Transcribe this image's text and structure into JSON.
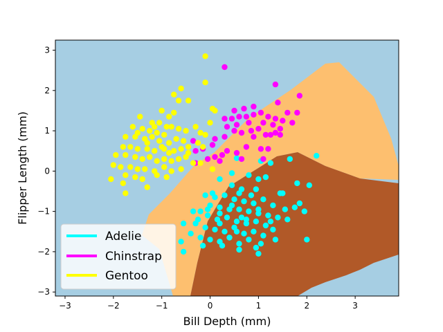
{
  "chart_data": {
    "type": "scatter",
    "title": "",
    "xlabel": "Bill Depth (mm)",
    "ylabel": "Flipper Length (mm)",
    "xlim": [
      -3.2,
      3.9
    ],
    "ylim": [
      -3.1,
      3.25
    ],
    "xticks": [
      -3,
      -2,
      -1,
      0,
      1,
      2,
      3
    ],
    "yticks": [
      -3,
      -2,
      -1,
      0,
      1,
      2,
      3
    ],
    "grid": false,
    "legend_position": "lower-left",
    "decision_regions": [
      {
        "name": "Adelie",
        "color": "#b15928"
      },
      {
        "name": "Chinstrap",
        "color": "#fdbf6f"
      },
      {
        "name": "Gentoo",
        "color": "#a6cee3"
      }
    ],
    "series": [
      {
        "name": "Adelie",
        "color": "#00ffff",
        "points": [
          [
            2.2,
            0.38
          ],
          [
            1.65,
            0.3
          ],
          [
            0.55,
            0.32
          ],
          [
            1.05,
            0.25
          ],
          [
            1.25,
            0.2
          ],
          [
            0.2,
            -0.2
          ],
          [
            0.45,
            -0.05
          ],
          [
            0.8,
            -0.1
          ],
          [
            1.0,
            -0.2
          ],
          [
            1.15,
            -0.15
          ],
          [
            1.8,
            -0.3
          ],
          [
            2.05,
            -0.35
          ],
          [
            0.95,
            -0.45
          ],
          [
            1.45,
            -0.55
          ],
          [
            0.6,
            -0.55
          ],
          [
            -0.1,
            -0.6
          ],
          [
            0.1,
            -0.65
          ],
          [
            0.3,
            -0.6
          ],
          [
            0.5,
            -0.7
          ],
          [
            0.7,
            -0.75
          ],
          [
            0.9,
            -0.8
          ],
          [
            1.1,
            -0.7
          ],
          [
            1.3,
            -0.85
          ],
          [
            1.5,
            -0.55
          ],
          [
            1.85,
            -0.8
          ],
          [
            0.0,
            -0.85
          ],
          [
            0.2,
            -0.9
          ],
          [
            0.4,
            -0.95
          ],
          [
            0.6,
            -0.95
          ],
          [
            0.8,
            -1.0
          ],
          [
            1.0,
            -1.05
          ],
          [
            1.2,
            -1.1
          ],
          [
            -0.2,
            -1.0
          ],
          [
            -0.05,
            -1.1
          ],
          [
            0.15,
            -1.2
          ],
          [
            0.35,
            -1.15
          ],
          [
            0.55,
            -1.25
          ],
          [
            0.75,
            -1.3
          ],
          [
            0.95,
            -1.25
          ],
          [
            1.15,
            -1.35
          ],
          [
            1.4,
            -1.15
          ],
          [
            1.6,
            -1.2
          ],
          [
            1.95,
            -1.0
          ],
          [
            1.75,
            -0.9
          ],
          [
            -0.3,
            -1.3
          ],
          [
            -0.1,
            -1.4
          ],
          [
            0.1,
            -1.45
          ],
          [
            0.3,
            -1.5
          ],
          [
            0.5,
            -1.4
          ],
          [
            0.7,
            -1.55
          ],
          [
            0.9,
            -1.5
          ],
          [
            1.1,
            -1.6
          ],
          [
            1.3,
            -1.45
          ],
          [
            -0.4,
            -1.55
          ],
          [
            -0.2,
            -1.65
          ],
          [
            0.0,
            -1.7
          ],
          [
            0.2,
            -1.75
          ],
          [
            0.4,
            -1.65
          ],
          [
            0.6,
            -1.8
          ],
          [
            0.8,
            -1.7
          ],
          [
            1.05,
            -1.8
          ],
          [
            -0.6,
            -1.75
          ],
          [
            -0.15,
            -1.85
          ],
          [
            0.25,
            -1.85
          ],
          [
            0.6,
            -1.95
          ],
          [
            0.95,
            -1.9
          ],
          [
            1.35,
            -1.7
          ],
          [
            2.0,
            -1.7
          ],
          [
            -0.55,
            -1.3
          ],
          [
            -0.35,
            -1.0
          ],
          [
            0.45,
            -0.35
          ],
          [
            0.65,
            -0.45
          ],
          [
            0.05,
            -0.55
          ],
          [
            -0.05,
            -0.95
          ],
          [
            0.85,
            -0.6
          ],
          [
            1.55,
            -0.95
          ],
          [
            1.0,
            -0.95
          ],
          [
            0.65,
            -1.15
          ],
          [
            0.2,
            -1.05
          ],
          [
            -0.25,
            -1.2
          ],
          [
            -0.55,
            -2.0
          ],
          [
            1.0,
            -2.05
          ],
          [
            0.2,
            -1.3
          ],
          [
            0.45,
            -0.85
          ],
          [
            1.25,
            -1.25
          ],
          [
            0.75,
            -1.2
          ],
          [
            0.55,
            -1.5
          ]
        ]
      },
      {
        "name": "Chinstrap",
        "color": "#ff00ff",
        "points": [
          [
            0.3,
            2.58
          ],
          [
            1.35,
            2.15
          ],
          [
            1.85,
            1.87
          ],
          [
            1.4,
            1.7
          ],
          [
            1.6,
            1.45
          ],
          [
            1.8,
            1.45
          ],
          [
            0.9,
            1.6
          ],
          [
            0.7,
            1.55
          ],
          [
            0.5,
            1.5
          ],
          [
            0.3,
            1.3
          ],
          [
            0.45,
            1.3
          ],
          [
            0.6,
            1.35
          ],
          [
            0.75,
            1.35
          ],
          [
            0.9,
            1.4
          ],
          [
            1.05,
            1.45
          ],
          [
            1.2,
            1.35
          ],
          [
            1.35,
            1.3
          ],
          [
            1.5,
            1.25
          ],
          [
            1.7,
            1.2
          ],
          [
            0.35,
            1.1
          ],
          [
            0.55,
            1.15
          ],
          [
            0.8,
            1.2
          ],
          [
            1.0,
            1.05
          ],
          [
            1.1,
            1.2
          ],
          [
            1.3,
            1.15
          ],
          [
            1.45,
            1.05
          ],
          [
            0.5,
            1.0
          ],
          [
            0.65,
            0.95
          ],
          [
            0.85,
            1.0
          ],
          [
            1.15,
            0.9
          ],
          [
            1.35,
            0.95
          ],
          [
            0.3,
            0.85
          ],
          [
            0.1,
            0.8
          ],
          [
            0.9,
            0.85
          ],
          [
            1.25,
            0.9
          ],
          [
            1.45,
            0.9
          ],
          [
            -0.35,
            0.75
          ],
          [
            0.05,
            0.65
          ],
          [
            -0.15,
            0.55
          ],
          [
            -0.3,
            0.5
          ],
          [
            0.35,
            0.5
          ],
          [
            0.55,
            0.45
          ],
          [
            0.25,
            0.4
          ],
          [
            0.1,
            0.35
          ],
          [
            -0.05,
            0.3
          ],
          [
            0.2,
            0.25
          ],
          [
            -0.3,
            0.2
          ],
          [
            0.65,
            0.3
          ],
          [
            1.1,
            0.3
          ],
          [
            0.75,
            0.6
          ],
          [
            1.05,
            0.55
          ],
          [
            1.2,
            0.55
          ]
        ]
      },
      {
        "name": "Gentoo",
        "color": "#ffff00",
        "points": [
          [
            -0.1,
            2.85
          ],
          [
            -0.1,
            2.2
          ],
          [
            -0.6,
            2.05
          ],
          [
            -0.75,
            1.9
          ],
          [
            -0.45,
            1.75
          ],
          [
            -1.0,
            1.5
          ],
          [
            -0.85,
            1.35
          ],
          [
            -0.75,
            1.45
          ],
          [
            -1.45,
            1.35
          ],
          [
            -1.2,
            1.2
          ],
          [
            -1.05,
            1.2
          ],
          [
            -0.9,
            1.1
          ],
          [
            -1.6,
            1.1
          ],
          [
            -1.4,
            1.05
          ],
          [
            -1.25,
            1.0
          ],
          [
            -1.1,
            0.95
          ],
          [
            -0.95,
            0.9
          ],
          [
            -0.8,
            1.1
          ],
          [
            -0.65,
            1.05
          ],
          [
            -0.5,
            1.0
          ],
          [
            -0.3,
            1.1
          ],
          [
            -0.2,
            0.95
          ],
          [
            -1.75,
            0.85
          ],
          [
            -1.55,
            0.85
          ],
          [
            -1.35,
            0.8
          ],
          [
            -1.2,
            0.85
          ],
          [
            -1.05,
            0.75
          ],
          [
            -0.85,
            0.7
          ],
          [
            -0.7,
            0.8
          ],
          [
            -0.55,
            0.75
          ],
          [
            -0.45,
            0.6
          ],
          [
            -0.25,
            0.7
          ],
          [
            -1.8,
            0.6
          ],
          [
            -1.65,
            0.6
          ],
          [
            -1.5,
            0.55
          ],
          [
            -1.3,
            0.55
          ],
          [
            -1.15,
            0.5
          ],
          [
            -0.95,
            0.55
          ],
          [
            -0.75,
            0.5
          ],
          [
            -0.6,
            0.55
          ],
          [
            -0.45,
            0.45
          ],
          [
            -1.95,
            0.4
          ],
          [
            -1.75,
            0.4
          ],
          [
            -1.55,
            0.35
          ],
          [
            -1.4,
            0.3
          ],
          [
            -1.25,
            0.35
          ],
          [
            -1.1,
            0.25
          ],
          [
            -0.95,
            0.3
          ],
          [
            -0.8,
            0.25
          ],
          [
            -0.65,
            0.3
          ],
          [
            -0.5,
            0.35
          ],
          [
            -0.35,
            0.2
          ],
          [
            -2.0,
            0.15
          ],
          [
            -1.85,
            0.1
          ],
          [
            -1.65,
            0.1
          ],
          [
            -1.5,
            0.05
          ],
          [
            -1.35,
            0.05
          ],
          [
            -1.15,
            0.0
          ],
          [
            -0.95,
            0.1
          ],
          [
            -0.8,
            0.0
          ],
          [
            -0.6,
            0.05
          ],
          [
            -1.75,
            -0.1
          ],
          [
            -1.55,
            -0.15
          ],
          [
            -1.8,
            -0.3
          ],
          [
            -1.4,
            -0.2
          ],
          [
            -1.1,
            -0.1
          ],
          [
            -2.05,
            -0.2
          ],
          [
            -1.75,
            -0.55
          ],
          [
            -1.3,
            -0.4
          ],
          [
            -0.9,
            -0.15
          ],
          [
            0.1,
            1.5
          ],
          [
            0.05,
            1.55
          ],
          [
            0.0,
            1.2
          ],
          [
            -0.1,
            0.9
          ],
          [
            0.05,
            0.05
          ],
          [
            -0.2,
            0.2
          ],
          [
            -1.5,
            0.95
          ],
          [
            -1.15,
            1.1
          ],
          [
            -0.65,
            1.75
          ],
          [
            -1.3,
            0.7
          ],
          [
            -1.0,
            0.6
          ],
          [
            -0.85,
            0.45
          ],
          [
            -0.15,
            0.6
          ]
        ]
      }
    ]
  }
}
